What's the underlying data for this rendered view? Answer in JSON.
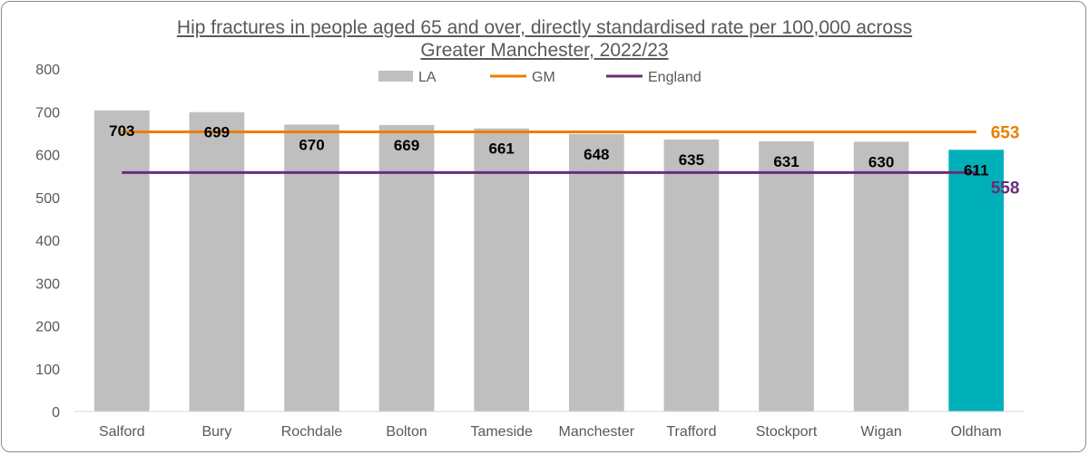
{
  "chart_data": {
    "type": "bar",
    "title_line1": "Hip fractures in people aged 65 and over, directly standardised rate per 100,000 across",
    "title_line2": "Greater Manchester, 2022/23",
    "categories": [
      "Salford",
      "Bury",
      "Rochdale",
      "Bolton",
      "Tameside",
      "Manchester",
      "Trafford",
      "Stockport",
      "Wigan",
      "Oldham"
    ],
    "series": [
      {
        "name": "LA",
        "values": [
          703,
          699,
          670,
          669,
          661,
          648,
          635,
          631,
          630,
          611
        ],
        "color": "#bfbfbf",
        "highlight_color": "#00b0b9",
        "highlight_category": "Oldham"
      }
    ],
    "reference_lines": [
      {
        "name": "GM",
        "value": 653,
        "label": "653",
        "color": "#ed7d00"
      },
      {
        "name": "England",
        "value": 558,
        "label": "558",
        "color": "#6b2c7b"
      }
    ],
    "ylim": [
      0,
      800
    ],
    "yticks": [
      0,
      100,
      200,
      300,
      400,
      500,
      600,
      700,
      800
    ],
    "legend_position": "top-center",
    "grid": false
  }
}
